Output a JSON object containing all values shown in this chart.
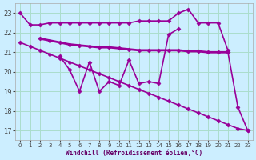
{
  "bg_color": "#cceeff",
  "grid_color": "#aaddcc",
  "line_color": "#990099",
  "xlabel": "Windchill (Refroidissement éolien,°C)",
  "ylim": [
    16.5,
    23.5
  ],
  "xlim": [
    -0.5,
    23.5
  ],
  "yticks": [
    17,
    18,
    19,
    20,
    21,
    22,
    23
  ],
  "xticks": [
    0,
    1,
    2,
    3,
    4,
    5,
    6,
    7,
    8,
    9,
    10,
    11,
    12,
    13,
    14,
    15,
    16,
    17,
    18,
    19,
    20,
    21,
    22,
    23
  ],
  "series": [
    {
      "x": [
        0,
        1,
        2,
        3,
        4,
        5,
        6,
        7,
        8,
        9,
        10,
        11,
        12,
        13,
        14,
        15,
        16,
        17,
        18,
        19,
        20,
        21
      ],
      "y": [
        23.0,
        22.4,
        22.4,
        22.5,
        22.5,
        22.5,
        22.5,
        22.5,
        22.5,
        22.5,
        22.5,
        22.5,
        22.6,
        22.6,
        22.6,
        22.6,
        23.0,
        23.2,
        22.5,
        22.5,
        22.5,
        21.1
      ],
      "marker": "D",
      "markersize": 2.5,
      "linewidth": 1.2
    },
    {
      "x": [
        2,
        3,
        4,
        5,
        6,
        7,
        8,
        9,
        10,
        11,
        12,
        13,
        14,
        15,
        16,
        17,
        18,
        19,
        20,
        21
      ],
      "y": [
        21.7,
        21.6,
        21.5,
        21.4,
        21.35,
        21.3,
        21.25,
        21.25,
        21.2,
        21.15,
        21.1,
        21.1,
        21.1,
        21.1,
        21.1,
        21.05,
        21.05,
        21.0,
        21.0,
        21.0
      ],
      "marker": "D",
      "markersize": 2.5,
      "linewidth": 2.0
    },
    {
      "x": [
        4,
        5,
        6,
        7,
        8,
        9,
        10,
        11,
        12,
        13,
        14,
        15,
        16
      ],
      "y": [
        20.8,
        20.1,
        19.0,
        20.5,
        19.0,
        19.5,
        19.3,
        20.6,
        19.4,
        19.5,
        19.4,
        21.9,
        22.2
      ],
      "marker": "D",
      "markersize": 2.5,
      "linewidth": 1.2
    },
    {
      "x": [
        0,
        1,
        2,
        3,
        4,
        5,
        6,
        7,
        8,
        9,
        10,
        11,
        12,
        13,
        14,
        15,
        16,
        17,
        18,
        19,
        20,
        21,
        22,
        23
      ],
      "y": [
        21.5,
        21.3,
        21.1,
        20.9,
        20.7,
        20.5,
        20.3,
        20.1,
        19.9,
        19.7,
        19.5,
        19.3,
        19.1,
        18.9,
        18.7,
        18.5,
        18.3,
        18.1,
        17.9,
        17.7,
        17.5,
        17.3,
        17.1,
        17.0
      ],
      "marker": "D",
      "markersize": 2.5,
      "linewidth": 1.2
    },
    {
      "x": [
        21,
        22,
        23
      ],
      "y": [
        21.0,
        18.2,
        17.0
      ],
      "marker": "D",
      "markersize": 2.5,
      "linewidth": 1.2
    }
  ]
}
